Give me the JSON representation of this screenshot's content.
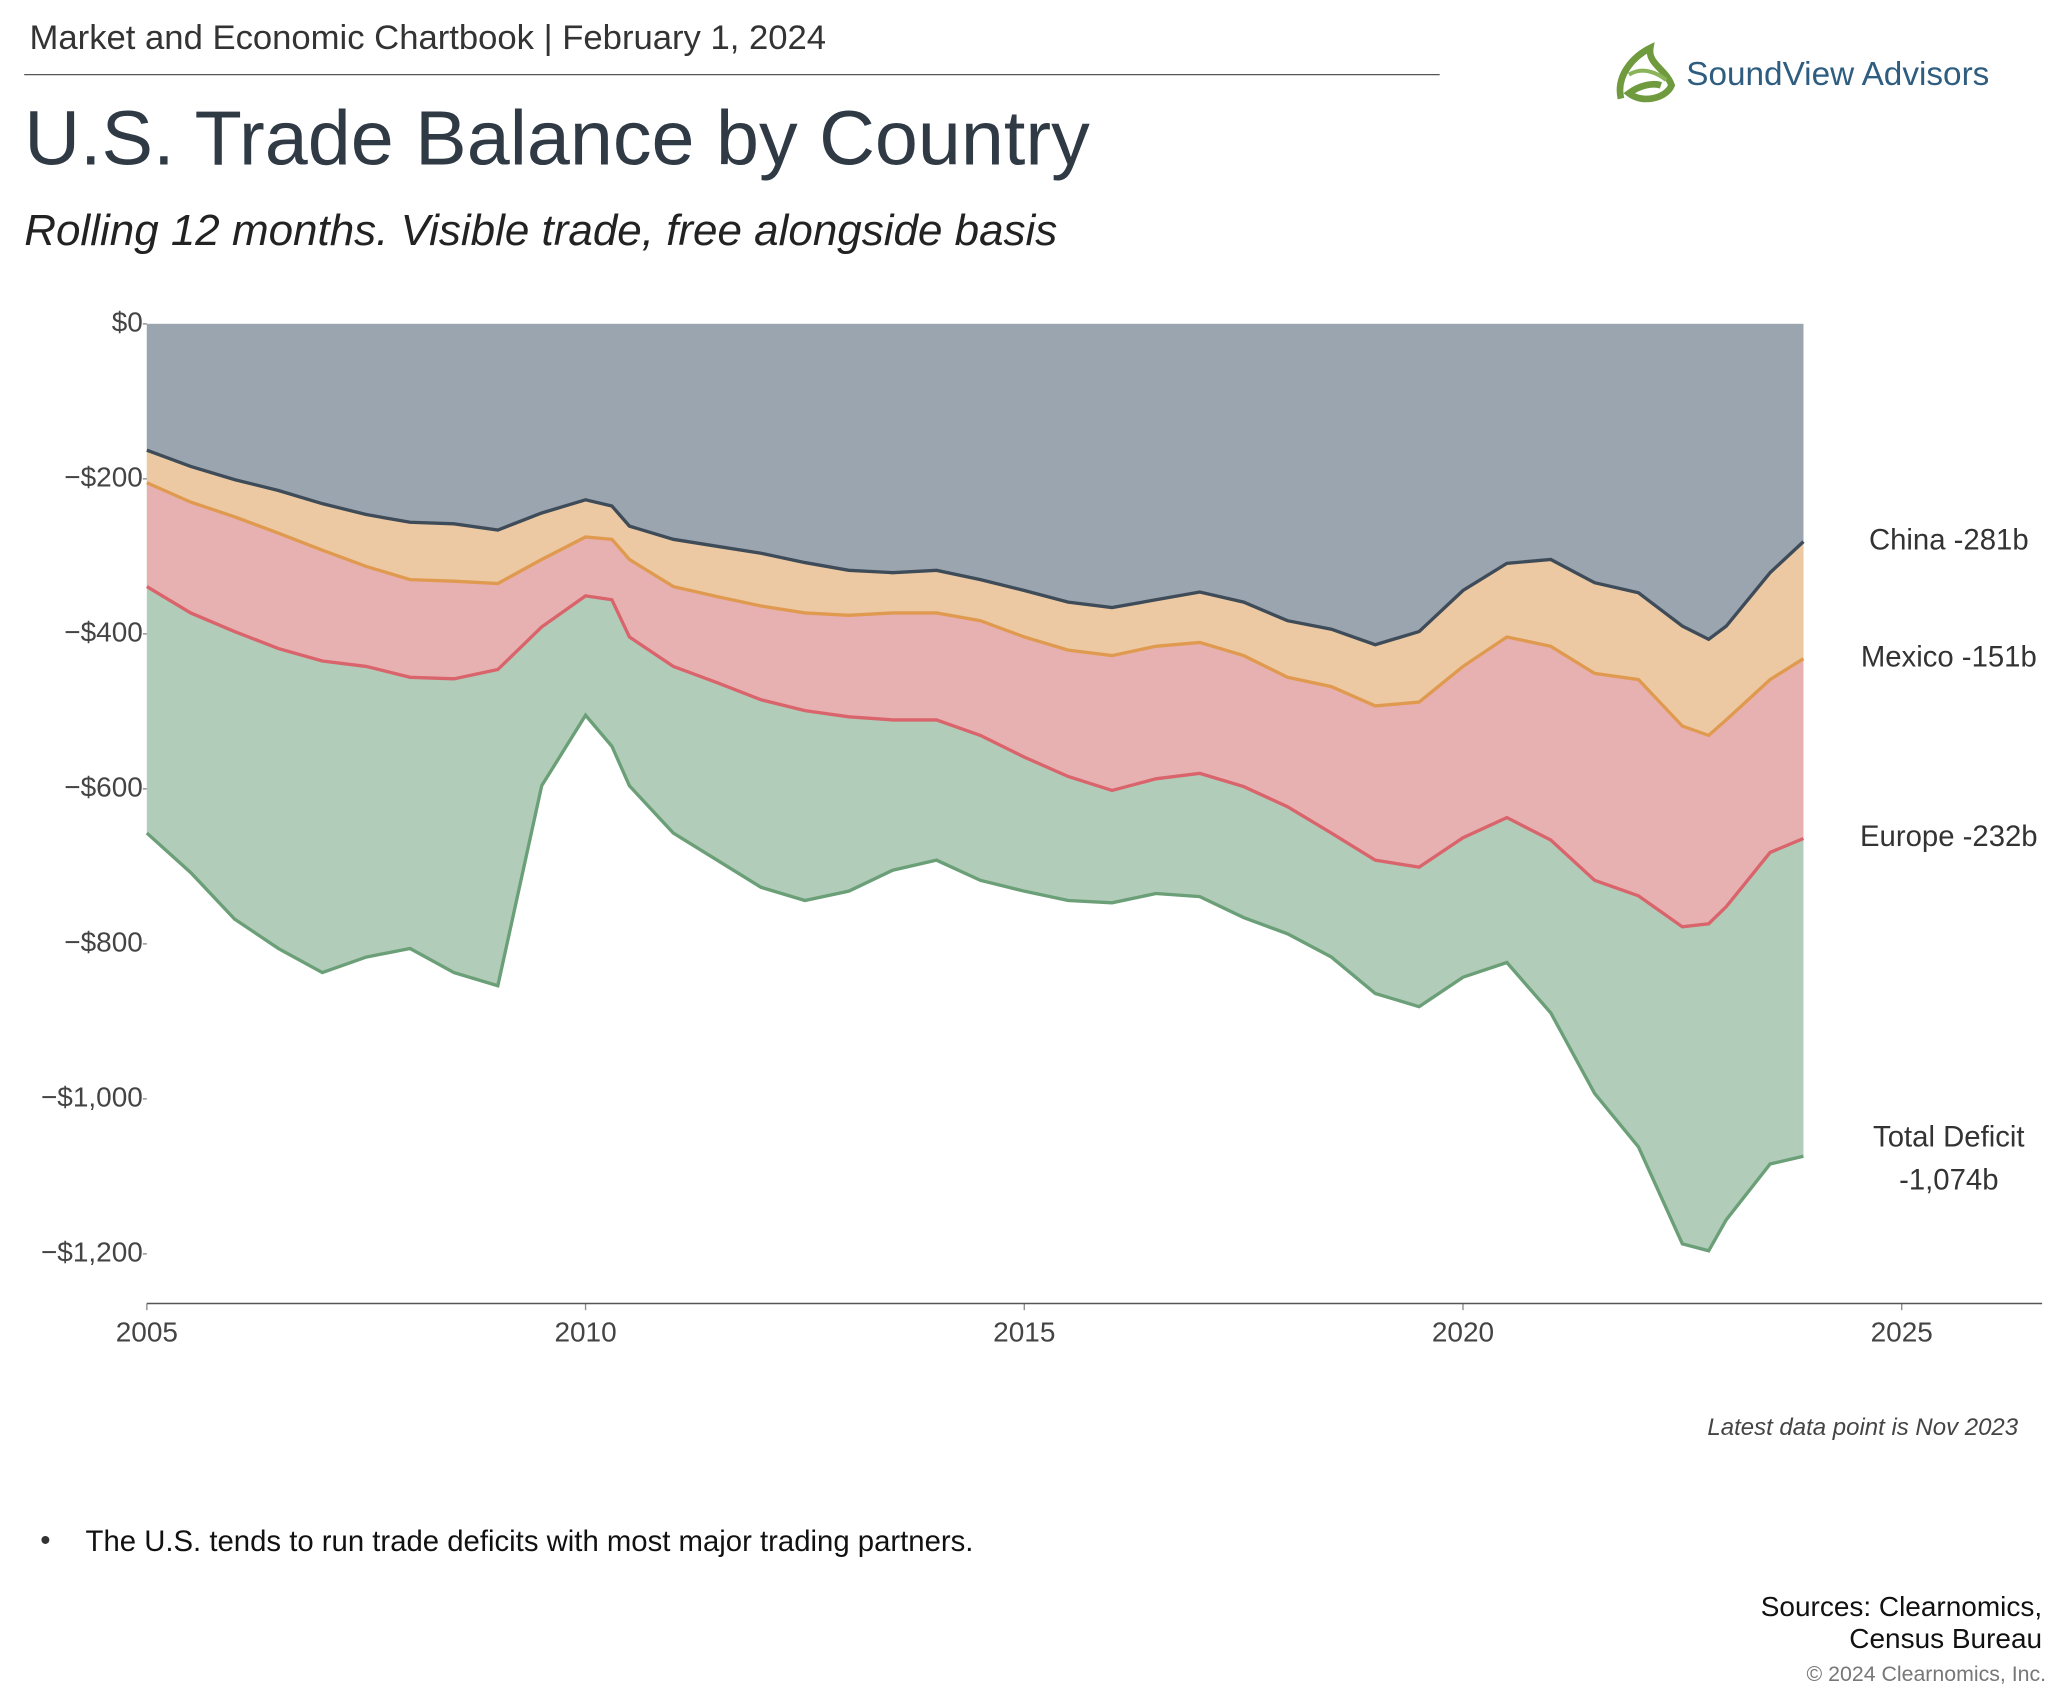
{
  "header": "Market and Economic Chartbook | February 1, 2024",
  "logo": "SoundView Advisors",
  "chart_data": {
    "type": "stacked-area",
    "title": "U.S. Trade Balance by Country",
    "subtitle": "Rolling 12 months. Visible trade, free alongside basis",
    "x": [
      2005.0,
      2005.5,
      2006.0,
      2006.5,
      2007.0,
      2007.5,
      2008.0,
      2008.5,
      2009.0,
      2009.5,
      2010.0,
      2010.3,
      2010.5,
      2011.0,
      2011.5,
      2012.0,
      2012.5,
      2013.0,
      2013.5,
      2014.0,
      2014.5,
      2015.0,
      2015.5,
      2016.0,
      2016.5,
      2017.0,
      2017.5,
      2018.0,
      2018.5,
      2019.0,
      2019.5,
      2020.0,
      2020.5,
      2021.0,
      2021.5,
      2022.0,
      2022.5,
      2022.8,
      2023.0,
      2023.5,
      2023.88
    ],
    "series": [
      {
        "name": "China -281b",
        "color": "#9ba5af",
        "line_color": "#3e4b59",
        "values": [
          -163,
          -184,
          -201,
          -215,
          -232,
          -246,
          -256,
          -258,
          -266,
          -244,
          -227,
          -235,
          -261,
          -278,
          -287,
          -296,
          -308,
          -318,
          -321,
          -318,
          -330,
          -344,
          -359,
          -366,
          -356,
          -346,
          -359,
          -383,
          -394,
          -414,
          -397,
          -344,
          -309,
          -304,
          -334,
          -347,
          -390,
          -407,
          -390,
          -321,
          -281
        ]
      },
      {
        "name": "Mexico -151b",
        "color": "#ecc9a2",
        "line_color": "#e09a50",
        "values": [
          -42,
          -46,
          -48,
          -55,
          -60,
          -67,
          -74,
          -74,
          -69,
          -60,
          -48,
          -43,
          -43,
          -61,
          -65,
          -68,
          -65,
          -58,
          -52,
          -55,
          -53,
          -60,
          -62,
          -62,
          -60,
          -65,
          -69,
          -73,
          -74,
          -79,
          -91,
          -98,
          -95,
          -112,
          -117,
          -112,
          -129,
          -124,
          -121,
          -138,
          -151
        ]
      },
      {
        "name": "Europe -232b",
        "color": "#e8b1b1",
        "line_color": "#d9646c",
        "values": [
          -134,
          -143,
          -148,
          -149,
          -143,
          -129,
          -126,
          -126,
          -111,
          -87,
          -76,
          -78,
          -100,
          -103,
          -111,
          -121,
          -126,
          -131,
          -138,
          -138,
          -148,
          -155,
          -163,
          -174,
          -171,
          -169,
          -169,
          -167,
          -189,
          -199,
          -213,
          -221,
          -233,
          -250,
          -267,
          -279,
          -259,
          -243,
          -241,
          -223,
          -232
        ]
      }
    ],
    "total": {
      "name": "Total Deficit",
      "value_label": "-1,074b",
      "color": "#b1ccb9",
      "line_color": "#6b9f77",
      "values": [
        -657,
        -708,
        -768,
        -806,
        -837,
        -817,
        -806,
        -837,
        -854,
        -596,
        -505,
        -545,
        -596,
        -657,
        -692,
        -727,
        -744,
        -732,
        -705,
        -692,
        -718,
        -732,
        -744,
        -747,
        -735,
        -739,
        -766,
        -787,
        -817,
        -864,
        -881,
        -843,
        -824,
        -889,
        -993,
        -1062,
        -1187,
        -1196,
        -1156,
        -1084,
        -1074
      ]
    },
    "xlim": [
      2005,
      2026.6
    ],
    "xticks": [
      2005,
      2010,
      2015,
      2020,
      2025
    ],
    "ylim": [
      -1264,
      0
    ],
    "yticks": [
      {
        "value": 0,
        "label": "$0"
      },
      {
        "value": -200,
        "label": "−$200"
      },
      {
        "value": -400,
        "label": "−$400"
      },
      {
        "value": -600,
        "label": "−$600"
      },
      {
        "value": -800,
        "label": "−$800"
      },
      {
        "value": -1000,
        "label": "−$1,000"
      },
      {
        "value": -1200,
        "label": "−$1,200"
      }
    ],
    "note": "Latest data point is Nov 2023"
  },
  "bullet": "The U.S. tends to run trade deficits with most major trading partners.",
  "sources": [
    "Sources: Clearnomics,",
    "Census Bureau"
  ],
  "copyright": "© 2024 Clearnomics, Inc."
}
